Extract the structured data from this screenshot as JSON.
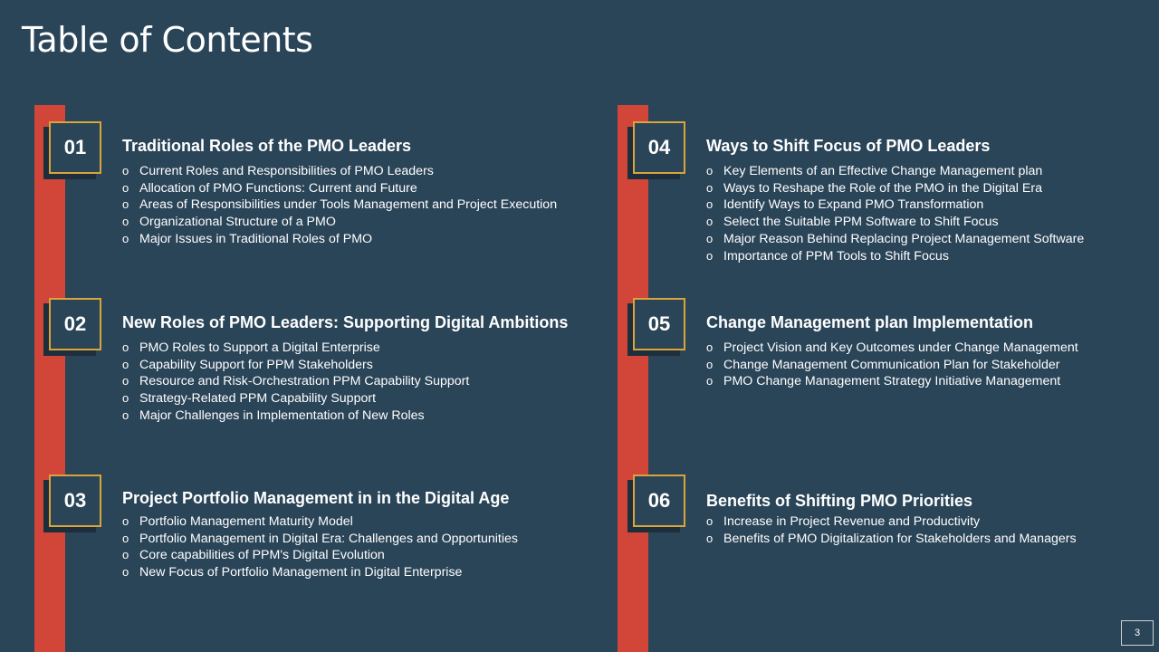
{
  "title": "Table of Contents",
  "page_number": "3",
  "colors": {
    "background": "#2a4458",
    "accent_bar": "#d2463a",
    "number_border": "#d9a53a",
    "shadow": "#1d2f3d"
  },
  "bullet_glyph": "o",
  "sections": [
    {
      "number": "01",
      "title": "Traditional Roles of the PMO Leaders",
      "items": [
        "Current Roles and Responsibilities of PMO Leaders",
        "Allocation of PMO Functions: Current and Future",
        "Areas of Responsibilities under Tools Management and Project Execution",
        "Organizational Structure of a PMO",
        "Major Issues in Traditional Roles of PMO"
      ]
    },
    {
      "number": "02",
      "title": "New Roles of PMO Leaders: Supporting Digital Ambitions",
      "items": [
        "PMO Roles to Support a Digital Enterprise",
        "Capability Support for PPM Stakeholders",
        "Resource and Risk-Orchestration PPM Capability Support",
        "Strategy-Related PPM Capability Support",
        "Major Challenges in Implementation of New Roles"
      ]
    },
    {
      "number": "03",
      "title": "Project Portfolio Management in in the Digital Age",
      "items": [
        "Portfolio Management Maturity Model",
        "Portfolio Management in Digital Era: Challenges and Opportunities",
        "Core capabilities of PPM's Digital Evolution",
        "New Focus of Portfolio Management in Digital Enterprise"
      ]
    },
    {
      "number": "04",
      "title": "Ways to Shift Focus of PMO Leaders",
      "items": [
        "Key Elements of an Effective Change Management plan",
        "Ways to Reshape the Role of the PMO in the Digital Era",
        "Identify Ways to Expand PMO Transformation",
        "Select the Suitable PPM Software to Shift Focus",
        "Major Reason Behind Replacing Project Management Software",
        "Importance of PPM Tools to Shift Focus"
      ]
    },
    {
      "number": "05",
      "title": "Change Management plan Implementation",
      "items": [
        "Project Vision and Key Outcomes under Change Management",
        "Change Management Communication Plan for Stakeholder",
        "PMO Change Management Strategy Initiative Management"
      ]
    },
    {
      "number": "06",
      "title": "Benefits of Shifting PMO Priorities",
      "items": [
        "Increase in Project Revenue and Productivity",
        "Benefits of PMO Digitalization for Stakeholders and Managers"
      ]
    }
  ]
}
